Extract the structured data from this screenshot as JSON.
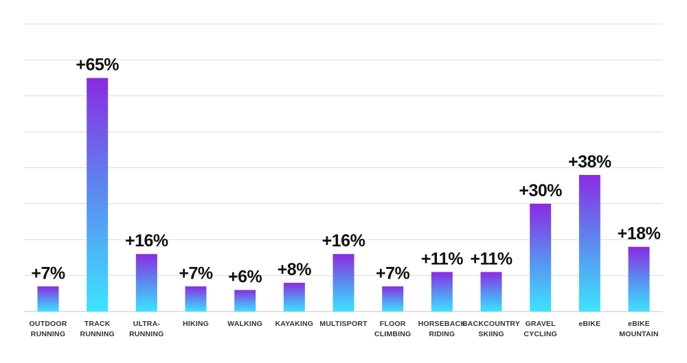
{
  "colors": {
    "bar_top": "#8a2be2",
    "bar_middle": "#5b8cf0",
    "bar_bottom": "#3ce4ff",
    "gridline": "#d9d9d9",
    "value_text": "#111111",
    "label_text": "#333333"
  },
  "chart_data": {
    "type": "bar",
    "title": "",
    "xlabel": "",
    "ylabel": "",
    "ylim": [
      0,
      80
    ],
    "grid": true,
    "legend": "none",
    "categories": [
      [
        "OUTDOOR",
        "RUNNING"
      ],
      [
        "TRACK",
        "RUNNING"
      ],
      [
        "ULTRA-",
        "RUNNING"
      ],
      [
        "HIKING"
      ],
      [
        "WALKING"
      ],
      [
        "KAYAKING"
      ],
      [
        "MULTISPORT"
      ],
      [
        "FLOOR",
        "CLIMBING"
      ],
      [
        "HORSEBACK",
        "RIDING"
      ],
      [
        "BACKCOUNTRY",
        "SKIING"
      ],
      [
        "GRAVEL",
        "CYCLING"
      ],
      [
        "eBIKE"
      ],
      [
        "eBIKE",
        "MOUNTAIN"
      ]
    ],
    "values": [
      7,
      65,
      16,
      7,
      6,
      8,
      16,
      7,
      11,
      11,
      30,
      38,
      18
    ],
    "value_labels": [
      "+7%",
      "+65%",
      "+16%",
      "+7%",
      "+6%",
      "+8%",
      "+16%",
      "+7%",
      "+11%",
      "+11%",
      "+30%",
      "+38%",
      "+18%"
    ]
  }
}
